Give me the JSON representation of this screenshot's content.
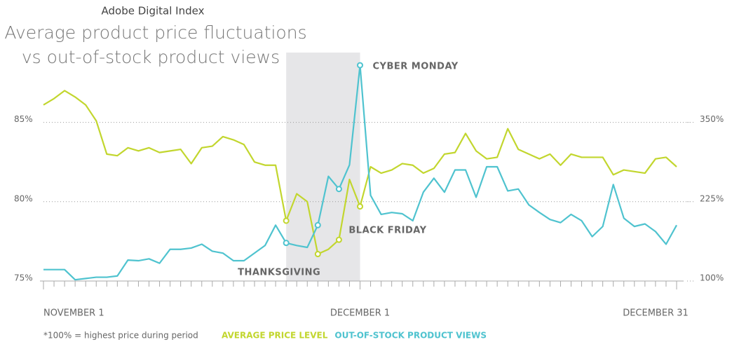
{
  "chart_data": {
    "type": "line",
    "header": "Adobe Digital Index",
    "title": [
      "Average product price fluctuations",
      "vs out-of-stock product views"
    ],
    "footnote": "*100% = highest price during period",
    "categories": [
      "NOVEMBER 1",
      null,
      null,
      null,
      null,
      null,
      null,
      null,
      null,
      null,
      null,
      null,
      null,
      null,
      null,
      null,
      null,
      null,
      null,
      null,
      null,
      null,
      null,
      null,
      null,
      null,
      null,
      null,
      null,
      null,
      "DECEMBER 1",
      null,
      null,
      null,
      null,
      null,
      null,
      null,
      null,
      null,
      null,
      null,
      null,
      null,
      null,
      null,
      null,
      null,
      null,
      null,
      null,
      null,
      null,
      null,
      null,
      null,
      null,
      null,
      null,
      null,
      "DECEMBER 31"
    ],
    "series": [
      {
        "name": "AVERAGE PRICE LEVEL",
        "color": "#c2d62e",
        "axis": "y",
        "values": [
          86.1,
          86.5,
          87.0,
          86.6,
          86.1,
          85.1,
          83.0,
          82.9,
          83.4,
          83.2,
          83.4,
          83.1,
          83.2,
          83.3,
          82.4,
          83.4,
          83.5,
          84.1,
          83.9,
          83.6,
          82.5,
          82.3,
          82.3,
          78.8,
          80.5,
          80.0,
          76.7,
          77.0,
          77.6,
          81.4,
          79.7,
          82.2,
          81.8,
          82.0,
          82.4,
          82.3,
          81.8,
          82.1,
          83.0,
          83.1,
          84.3,
          83.2,
          82.7,
          82.8,
          84.6,
          83.3,
          83.0,
          82.7,
          83.0,
          82.3,
          83.0,
          82.8,
          82.8,
          82.8,
          81.7,
          82.0,
          81.9,
          81.8,
          82.7,
          82.8,
          82.2
        ]
      },
      {
        "name": "OUT-OF-STOCK PRODUCT VIEWS",
        "color": "#4fc3cf",
        "axis": "y2",
        "values": [
          118,
          118,
          118,
          102,
          104,
          106,
          106,
          108,
          133,
          132,
          135,
          128,
          150,
          150,
          152,
          158,
          147,
          144,
          132,
          132,
          144,
          156,
          188,
          160,
          156,
          153,
          188,
          265,
          245,
          283,
          440,
          235,
          205,
          208,
          206,
          195,
          240,
          262,
          240,
          275,
          275,
          232,
          280,
          280,
          242,
          245,
          220,
          208,
          197,
          192,
          205,
          195,
          170,
          186,
          252,
          199,
          186,
          190,
          178,
          158,
          188
        ]
      }
    ],
    "marked_points": [
      23,
      26,
      28,
      30
    ],
    "highlight": [
      23,
      30
    ],
    "annotations": [
      {
        "text": "THANKSGIVING",
        "x": 23
      },
      {
        "text": "BLACK FRIDAY",
        "x": 28
      },
      {
        "text": "CYBER MONDAY",
        "x": 30
      }
    ],
    "ylim": [
      75,
      89.4
    ],
    "yticks": [
      {
        "value": 75,
        "label": "75%"
      },
      {
        "value": 80,
        "label": "80%"
      },
      {
        "value": 85,
        "label": "85%"
      }
    ],
    "y2lim": [
      100,
      460
    ],
    "y2ticks": [
      {
        "value": 100,
        "label": "100%"
      },
      {
        "value": 225,
        "label": "225%"
      },
      {
        "value": 350,
        "label": "350%"
      }
    ],
    "grid": true
  }
}
